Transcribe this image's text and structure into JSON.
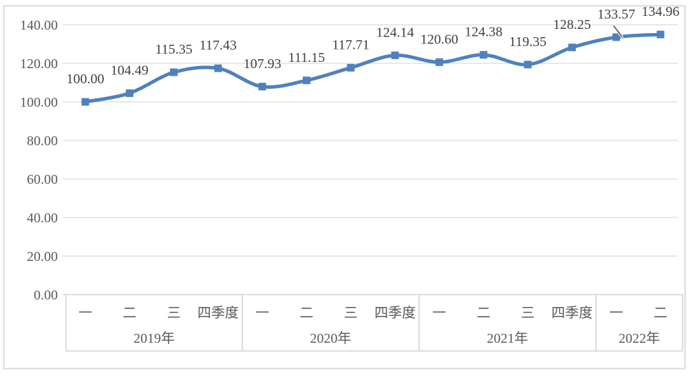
{
  "chart_data": {
    "type": "line",
    "title": "",
    "legend": "none",
    "grid": true,
    "line_smooth": true,
    "marker_shape": "square",
    "ylim": [
      0,
      140
    ],
    "y_axis": {
      "min": 0,
      "max": 140,
      "step": 20,
      "tick_labels": [
        "0.00",
        "20.00",
        "40.00",
        "60.00",
        "80.00",
        "100.00",
        "120.00",
        "140.00"
      ]
    },
    "x_axis": {
      "groups": [
        {
          "year": "2019年",
          "quarters": [
            "一",
            "二",
            "三",
            "四季度"
          ]
        },
        {
          "year": "2020年",
          "quarters": [
            "一",
            "二",
            "三",
            "四季度"
          ]
        },
        {
          "year": "2021年",
          "quarters": [
            "一",
            "二",
            "三",
            "四季度"
          ]
        },
        {
          "year": "2022年",
          "quarters": [
            "一",
            "二"
          ]
        }
      ]
    },
    "series": [
      {
        "name": "",
        "values": [
          100.0,
          104.49,
          115.35,
          117.43,
          107.93,
          111.15,
          117.71,
          124.14,
          120.6,
          124.38,
          119.35,
          128.25,
          133.57,
          134.96
        ],
        "data_labels": [
          "100.00",
          "104.49",
          "115.35",
          "117.43",
          "107.93",
          "111.15",
          "117.71",
          "124.14",
          "120.60",
          "124.38",
          "119.35",
          "128.25",
          "133.57",
          "134.96"
        ]
      }
    ]
  },
  "colors": {
    "line": "#4F81BD",
    "marker": "#4F81BD",
    "gridline": "#D9D9D9",
    "axis_text": "#595959",
    "data_label_text": "#3F3F3F",
    "category_text": "#595959",
    "table_border": "#C9C9C9",
    "frame_border": "#D8DAE0",
    "background": "#FFFFFF",
    "cursor": "#6E6E6E"
  },
  "cursor": {
    "present": true,
    "over_point_label": "133.57"
  }
}
